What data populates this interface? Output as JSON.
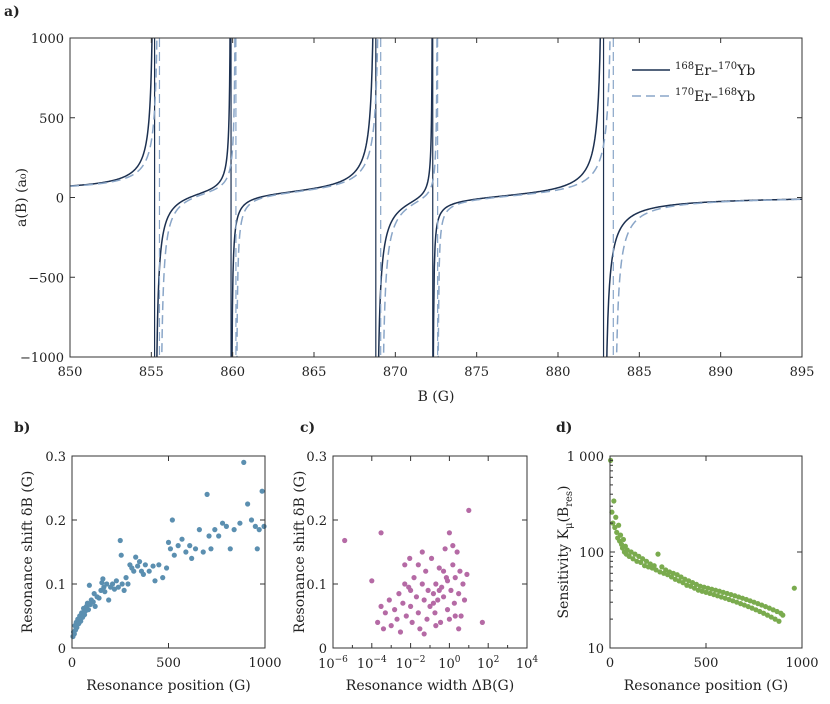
{
  "chart_data": [
    {
      "panel": "a)",
      "type": "line",
      "xlabel": "B (G)",
      "ylabel": "a(B) (a₀)",
      "xlim": [
        850,
        895
      ],
      "ylim": [
        -1000,
        1000
      ],
      "xticks": [
        850,
        855,
        860,
        865,
        870,
        875,
        880,
        885,
        890,
        895
      ],
      "yticks": [
        -1000,
        -500,
        0,
        500,
        1000
      ],
      "legend_position": "top-right",
      "background_scattering_length": 20,
      "series": [
        {
          "name": "168Er–170Yb",
          "legend_parts": {
            "m1": "168",
            "e1": "Er",
            "m2": "170",
            "e2": "Yb"
          },
          "color": "#1c3050",
          "style": "solid",
          "resonances": [
            {
              "pole": 855.2,
              "strength": 1.5
            },
            {
              "pole": 859.9,
              "strength": 0.6
            },
            {
              "pole": 868.8,
              "strength": 1.8
            },
            {
              "pole": 872.3,
              "strength": 0.4
            },
            {
              "pole": 882.8,
              "strength": 2.0
            }
          ]
        },
        {
          "name": "170Er–168Yb",
          "legend_parts": {
            "m1": "170",
            "e1": "Er",
            "m2": "168",
            "e2": "Yb"
          },
          "color": "#8aa6c8",
          "style": "dashed",
          "resonances": [
            {
              "pole": 855.5,
              "strength": 1.5
            },
            {
              "pole": 860.2,
              "strength": 0.6
            },
            {
              "pole": 869.1,
              "strength": 1.8
            },
            {
              "pole": 872.6,
              "strength": 0.4
            },
            {
              "pole": 883.4,
              "strength": 2.0
            }
          ]
        }
      ]
    },
    {
      "panel": "b)",
      "type": "scatter",
      "xlabel": "Resonance position (G)",
      "ylabel": "Resonance shift δB (G)",
      "xlim": [
        0,
        1000
      ],
      "ylim": [
        0,
        0.3
      ],
      "xticks": [
        0,
        500,
        1000
      ],
      "yticks": [
        0,
        0.1,
        0.2,
        0.3
      ],
      "color": "#5b8fb0",
      "points": [
        [
          5,
          0.018
        ],
        [
          8,
          0.025
        ],
        [
          12,
          0.022
        ],
        [
          15,
          0.035
        ],
        [
          18,
          0.028
        ],
        [
          22,
          0.04
        ],
        [
          25,
          0.032
        ],
        [
          30,
          0.045
        ],
        [
          35,
          0.038
        ],
        [
          40,
          0.05
        ],
        [
          45,
          0.042
        ],
        [
          50,
          0.055
        ],
        [
          55,
          0.048
        ],
        [
          60,
          0.062
        ],
        [
          65,
          0.052
        ],
        [
          70,
          0.058
        ],
        [
          75,
          0.065
        ],
        [
          80,
          0.07
        ],
        [
          85,
          0.06
        ],
        [
          90,
          0.098
        ],
        [
          95,
          0.068
        ],
        [
          100,
          0.075
        ],
        [
          110,
          0.072
        ],
        [
          115,
          0.085
        ],
        [
          120,
          0.065
        ],
        [
          130,
          0.08
        ],
        [
          140,
          0.078
        ],
        [
          150,
          0.09
        ],
        [
          155,
          0.102
        ],
        [
          160,
          0.108
        ],
        [
          165,
          0.095
        ],
        [
          170,
          0.088
        ],
        [
          180,
          0.1
        ],
        [
          190,
          0.075
        ],
        [
          200,
          0.095
        ],
        [
          210,
          0.1
        ],
        [
          220,
          0.092
        ],
        [
          230,
          0.105
        ],
        [
          240,
          0.095
        ],
        [
          250,
          0.168
        ],
        [
          255,
          0.145
        ],
        [
          260,
          0.1
        ],
        [
          270,
          0.09
        ],
        [
          280,
          0.11
        ],
        [
          290,
          0.1
        ],
        [
          300,
          0.13
        ],
        [
          310,
          0.125
        ],
        [
          320,
          0.12
        ],
        [
          330,
          0.142
        ],
        [
          340,
          0.128
        ],
        [
          350,
          0.135
        ],
        [
          360,
          0.12
        ],
        [
          370,
          0.115
        ],
        [
          380,
          0.13
        ],
        [
          400,
          0.12
        ],
        [
          420,
          0.128
        ],
        [
          430,
          0.105
        ],
        [
          450,
          0.13
        ],
        [
          470,
          0.11
        ],
        [
          490,
          0.125
        ],
        [
          500,
          0.165
        ],
        [
          510,
          0.155
        ],
        [
          520,
          0.2
        ],
        [
          530,
          0.145
        ],
        [
          550,
          0.16
        ],
        [
          570,
          0.17
        ],
        [
          590,
          0.15
        ],
        [
          610,
          0.16
        ],
        [
          620,
          0.14
        ],
        [
          640,
          0.155
        ],
        [
          660,
          0.185
        ],
        [
          680,
          0.15
        ],
        [
          700,
          0.24
        ],
        [
          710,
          0.175
        ],
        [
          720,
          0.155
        ],
        [
          740,
          0.185
        ],
        [
          760,
          0.175
        ],
        [
          780,
          0.195
        ],
        [
          800,
          0.19
        ],
        [
          820,
          0.155
        ],
        [
          840,
          0.185
        ],
        [
          870,
          0.195
        ],
        [
          890,
          0.29
        ],
        [
          910,
          0.225
        ],
        [
          930,
          0.2
        ],
        [
          950,
          0.19
        ],
        [
          960,
          0.155
        ],
        [
          970,
          0.185
        ],
        [
          985,
          0.245
        ],
        [
          995,
          0.19
        ]
      ]
    },
    {
      "panel": "c)",
      "type": "scatter",
      "xscale": "log",
      "xlabel": "Resonance width ΔB(G)",
      "ylabel": "Resonance shift δB (G)",
      "xlim": [
        1e-06,
        10000
      ],
      "ylim": [
        0,
        0.3
      ],
      "xtick_labels": [
        {
          "value": 1e-06,
          "base": "10",
          "exp": "−6"
        },
        {
          "value": 0.0001,
          "base": "10",
          "exp": "−4"
        },
        {
          "value": 0.01,
          "base": "10",
          "exp": "−2"
        },
        {
          "value": 1,
          "base": "10",
          "exp": "0"
        },
        {
          "value": 100,
          "base": "10",
          "exp": "2"
        },
        {
          "value": 10000,
          "base": "10",
          "exp": "4"
        }
      ],
      "yticks": [
        0,
        0.1,
        0.2,
        0.3
      ],
      "color": "#b56aa5",
      "points": [
        [
          4e-06,
          0.168
        ],
        [
          0.0001,
          0.105
        ],
        [
          0.0003,
          0.18
        ],
        [
          0.0002,
          0.04
        ],
        [
          0.0003,
          0.065
        ],
        [
          0.0004,
          0.03
        ],
        [
          0.0005,
          0.055
        ],
        [
          0.0008,
          0.075
        ],
        [
          0.001,
          0.035
        ],
        [
          0.0015,
          0.06
        ],
        [
          0.002,
          0.045
        ],
        [
          0.0025,
          0.085
        ],
        [
          0.003,
          0.025
        ],
        [
          0.004,
          0.07
        ],
        [
          0.005,
          0.13
        ],
        [
          0.006,
          0.05
        ],
        [
          0.008,
          0.095
        ],
        [
          0.01,
          0.065
        ],
        [
          0.012,
          0.04
        ],
        [
          0.015,
          0.11
        ],
        [
          0.02,
          0.08
        ],
        [
          0.025,
          0.055
        ],
        [
          0.03,
          0.03
        ],
        [
          0.04,
          0.1
        ],
        [
          0.05,
          0.075
        ],
        [
          0.06,
          0.12
        ],
        [
          0.07,
          0.045
        ],
        [
          0.08,
          0.09
        ],
        [
          0.1,
          0.065
        ],
        [
          0.12,
          0.14
        ],
        [
          0.15,
          0.085
        ],
        [
          0.18,
          0.055
        ],
        [
          0.2,
          0.1
        ],
        [
          0.25,
          0.075
        ],
        [
          0.3,
          0.125
        ],
        [
          0.35,
          0.04
        ],
        [
          0.4,
          0.095
        ],
        [
          0.5,
          0.08
        ],
        [
          0.6,
          0.155
        ],
        [
          0.7,
          0.11
        ],
        [
          0.8,
          0.06
        ],
        [
          1,
          0.18
        ],
        [
          1.2,
          0.09
        ],
        [
          1.5,
          0.13
        ],
        [
          1.8,
          0.07
        ],
        [
          2,
          0.11
        ],
        [
          2.5,
          0.15
        ],
        [
          3,
          0.085
        ],
        [
          3.5,
          0.12
        ],
        [
          4,
          0.05
        ],
        [
          5,
          0.1
        ],
        [
          6,
          0.075
        ],
        [
          8,
          0.115
        ],
        [
          10,
          0.215
        ],
        [
          3,
          0.03
        ],
        [
          0.05,
          0.022
        ],
        [
          0.009,
          0.14
        ],
        [
          0.04,
          0.15
        ],
        [
          0.2,
          0.035
        ],
        [
          2,
          0.05
        ],
        [
          1.5,
          0.16
        ],
        [
          0.5,
          0.12
        ],
        [
          0.8,
          0.105
        ],
        [
          0.3,
          0.09
        ],
        [
          0.15,
          0.07
        ],
        [
          0.025,
          0.13
        ],
        [
          0.01,
          0.09
        ],
        [
          0.005,
          0.1
        ],
        [
          50,
          0.04
        ],
        [
          1,
          0.045
        ]
      ]
    },
    {
      "panel": "d)",
      "type": "scatter",
      "yscale": "log",
      "xlabel": "Resonance position (G)",
      "ylabel": "Sensitivity K_μ(B_res)",
      "ylabel_parts": {
        "main": "Sensitivity K",
        "sub1": "μ",
        "open": "(B",
        "sub2": "res",
        "close": ")"
      },
      "xlim": [
        0,
        1000
      ],
      "ylim": [
        10,
        1000
      ],
      "xticks": [
        0,
        500,
        1000
      ],
      "ytick_labels": [
        {
          "value": 10,
          "label": "10"
        },
        {
          "value": 100,
          "label": "100"
        },
        {
          "value": 1000,
          "label": "1 000"
        }
      ],
      "color": "#7aab4e",
      "points": [
        [
          3,
          900
        ],
        [
          10,
          260
        ],
        [
          15,
          200
        ],
        [
          20,
          340
        ],
        [
          25,
          180
        ],
        [
          30,
          230
        ],
        [
          35,
          160
        ],
        [
          40,
          140
        ],
        [
          45,
          190
        ],
        [
          50,
          130
        ],
        [
          55,
          150
        ],
        [
          60,
          120
        ],
        [
          65,
          110
        ],
        [
          70,
          135
        ],
        [
          75,
          100
        ],
        [
          80,
          115
        ],
        [
          85,
          95
        ],
        [
          90,
          105
        ],
        [
          100,
          90
        ],
        [
          110,
          100
        ],
        [
          120,
          85
        ],
        [
          130,
          95
        ],
        [
          140,
          80
        ],
        [
          150,
          90
        ],
        [
          160,
          78
        ],
        [
          170,
          85
        ],
        [
          180,
          72
        ],
        [
          190,
          80
        ],
        [
          200,
          70
        ],
        [
          210,
          75
        ],
        [
          220,
          68
        ],
        [
          230,
          72
        ],
        [
          240,
          65
        ],
        [
          250,
          95
        ],
        [
          260,
          62
        ],
        [
          270,
          70
        ],
        [
          280,
          60
        ],
        [
          290,
          65
        ],
        [
          300,
          58
        ],
        [
          310,
          62
        ],
        [
          320,
          55
        ],
        [
          330,
          60
        ],
        [
          340,
          52
        ],
        [
          350,
          58
        ],
        [
          360,
          50
        ],
        [
          370,
          55
        ],
        [
          380,
          48
        ],
        [
          390,
          52
        ],
        [
          400,
          45
        ],
        [
          410,
          50
        ],
        [
          420,
          44
        ],
        [
          430,
          48
        ],
        [
          440,
          42
        ],
        [
          450,
          46
        ],
        [
          460,
          40
        ],
        [
          470,
          44
        ],
        [
          480,
          39
        ],
        [
          490,
          43
        ],
        [
          500,
          38
        ],
        [
          510,
          42
        ],
        [
          520,
          37
        ],
        [
          530,
          41
        ],
        [
          540,
          36
        ],
        [
          550,
          40
        ],
        [
          560,
          35
        ],
        [
          570,
          39
        ],
        [
          580,
          34
        ],
        [
          590,
          38
        ],
        [
          600,
          33
        ],
        [
          610,
          37
        ],
        [
          620,
          32
        ],
        [
          630,
          36
        ],
        [
          640,
          31
        ],
        [
          650,
          35
        ],
        [
          660,
          30
        ],
        [
          670,
          34
        ],
        [
          680,
          29
        ],
        [
          690,
          33
        ],
        [
          700,
          28
        ],
        [
          710,
          32
        ],
        [
          720,
          27
        ],
        [
          730,
          31
        ],
        [
          740,
          26
        ],
        [
          750,
          30
        ],
        [
          760,
          25
        ],
        [
          770,
          29
        ],
        [
          780,
          24
        ],
        [
          790,
          28
        ],
        [
          800,
          23
        ],
        [
          810,
          27
        ],
        [
          820,
          22
        ],
        [
          830,
          26
        ],
        [
          840,
          21
        ],
        [
          850,
          25
        ],
        [
          860,
          20
        ],
        [
          870,
          24
        ],
        [
          880,
          19
        ],
        [
          890,
          23
        ],
        [
          900,
          22
        ],
        [
          960,
          42
        ]
      ]
    }
  ]
}
